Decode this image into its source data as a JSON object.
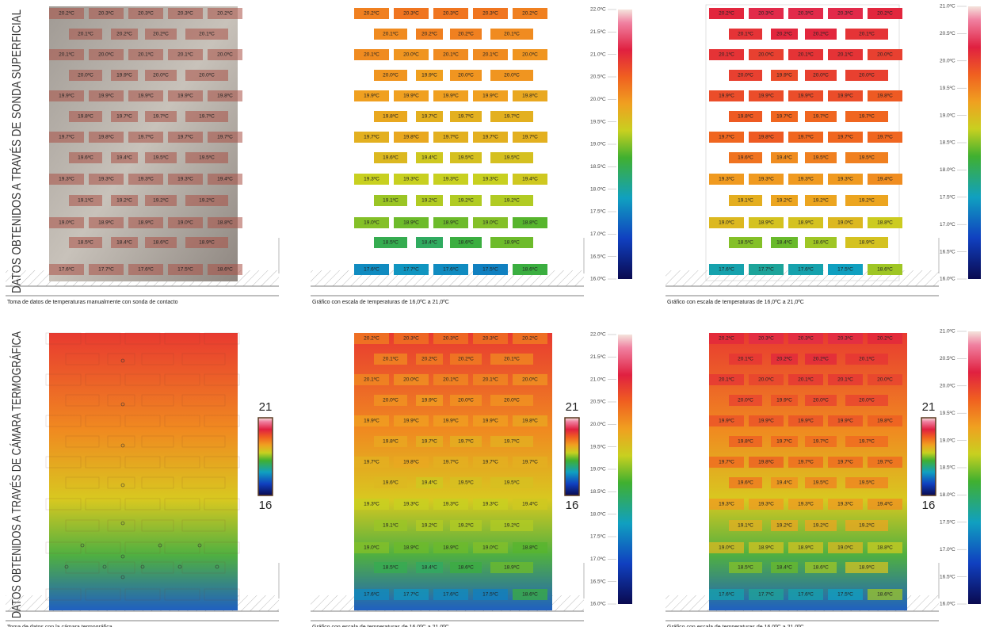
{
  "side_labels": [
    "DATOS OBTENIDOS A TRAVÉS DE SONDA SUPERFICIAL",
    "DATOS OBTENIDOS A TRAVÉS DE CÁMARA TERMOGRÁFICA"
  ],
  "captions": {
    "probe": "Toma de datos de temperaturas manualmente con sonda de contacto",
    "scale": "Gráfico con escala de temperaturas de 16,0ºC a 21,0ºC",
    "camera": "Toma de datos con la cámara termográfica"
  },
  "readings": {
    "values": [
      [
        20.2,
        20.3,
        20.3,
        20.3,
        20.2
      ],
      [
        20.1,
        20.2,
        20.2,
        20.1
      ],
      [
        20.1,
        20.0,
        20.1,
        20.1,
        20.0
      ],
      [
        20.0,
        19.9,
        20.0,
        20.0
      ],
      [
        19.9,
        19.9,
        19.9,
        19.9,
        19.8
      ],
      [
        19.8,
        19.7,
        19.7,
        19.7
      ],
      [
        19.7,
        19.8,
        19.7,
        19.7,
        19.7
      ],
      [
        19.6,
        19.4,
        19.5,
        19.5
      ],
      [
        19.3,
        19.3,
        19.3,
        19.3,
        19.4
      ],
      [
        19.1,
        19.2,
        19.2,
        19.2
      ],
      [
        19.0,
        18.9,
        18.9,
        19.0,
        18.8
      ],
      [
        18.5,
        18.4,
        18.6,
        18.9
      ],
      [
        17.6,
        17.7,
        17.6,
        17.5,
        18.6
      ]
    ],
    "labels": [
      [
        "20.2ºC",
        "20.3ºC",
        "20.3ºC",
        "20.3ºC",
        "20.2ºC"
      ],
      [
        "20.1ºC",
        "20.2ºC",
        "20.2ºC",
        "20.1ºC"
      ],
      [
        "20.1ºC",
        "20.0ºC",
        "20.1ºC",
        "20.1ºC",
        "20.0ºC"
      ],
      [
        "20.0ºC",
        "19.9ºC",
        "20.0ºC",
        "20.0ºC"
      ],
      [
        "19.9ºC",
        "19.9ºC",
        "19.9ºC",
        "19.9ºC",
        "19.8ºC"
      ],
      [
        "19.8ºC",
        "19.7ºC",
        "19.7ºC",
        "19.7ºC"
      ],
      [
        "19.7ºC",
        "19.8ºC",
        "19.7ºC",
        "19.7ºC",
        "19.7ºC"
      ],
      [
        "19.6ºC",
        "19.4ºC",
        "19.5ºC",
        "19.5ºC"
      ],
      [
        "19.3ºC",
        "19.3ºC",
        "19.3ºC",
        "19.3ºC",
        "19.4ºC"
      ],
      [
        "19.1ºC",
        "19.2ºC",
        "19.2ºC",
        "19.2ºC"
      ],
      [
        "19.0ºC",
        "18.9ºC",
        "18.9ºC",
        "19.0ºC",
        "18.8ºC"
      ],
      [
        "18.5ºC",
        "18.4ºC",
        "18.6ºC",
        "18.9ºC"
      ],
      [
        "17.6ºC",
        "17.7ºC",
        "17.6ºC",
        "17.5ºC",
        "18.6ºC"
      ]
    ]
  },
  "scales": [
    {
      "lim": [
        16,
        22
      ],
      "ticks": [
        {
          "value": 22,
          "label": "22.0ºC"
        },
        {
          "value": 21.5,
          "label": "21.5ºC"
        },
        {
          "value": 21,
          "label": "21.0ºC"
        },
        {
          "value": 20.5,
          "label": "20.5ºC"
        },
        {
          "value": 20,
          "label": "20.0ºC"
        },
        {
          "value": 19.5,
          "label": "19.5ºC"
        },
        {
          "value": 19,
          "label": "19.0ºC"
        },
        {
          "value": 18.5,
          "label": "18.5ºC"
        },
        {
          "value": 18,
          "label": "18.0ºC"
        },
        {
          "value": 17.5,
          "label": "17.5ºC"
        },
        {
          "value": 17,
          "label": "17.0ºC"
        },
        {
          "value": 16.5,
          "label": "16.5ºC"
        },
        {
          "value": 16,
          "label": "16.0ºC"
        }
      ]
    },
    {
      "lim": [
        16,
        21
      ],
      "ticks": [
        {
          "value": 21,
          "label": "21.0ºC"
        },
        {
          "value": 20.5,
          "label": "20.5ºC"
        },
        {
          "value": 20,
          "label": "20.0ºC"
        },
        {
          "value": 19.5,
          "label": "19.5ºC"
        },
        {
          "value": 19,
          "label": "19.0ºC"
        },
        {
          "value": 18.5,
          "label": "18.5ºC"
        },
        {
          "value": 18,
          "label": "18.0ºC"
        },
        {
          "value": 17.5,
          "label": "17.5ºC"
        },
        {
          "value": 17,
          "label": "17.0ºC"
        },
        {
          "value": 16.5,
          "label": "16.5ºC"
        },
        {
          "value": 16,
          "label": "16.0ºC"
        }
      ]
    }
  ],
  "camera_scale": {
    "lim": [
      16,
      21
    ],
    "ticks": [
      21,
      16
    ]
  }
}
